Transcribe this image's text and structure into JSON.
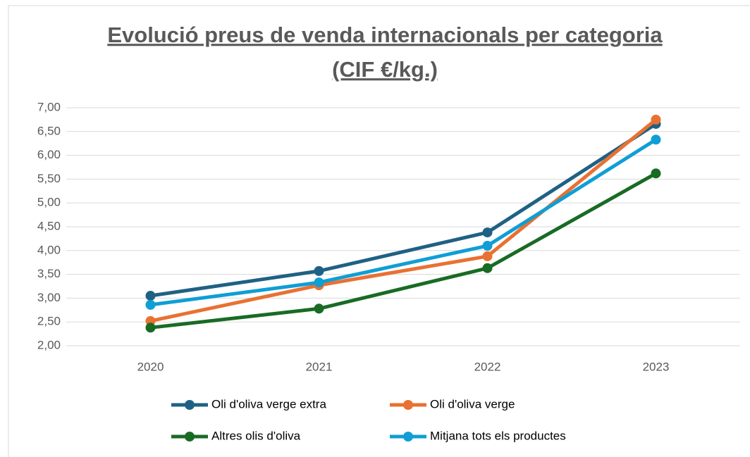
{
  "chart_data": {
    "type": "line",
    "title": [
      "Evolució preus de venda internacionals per categoria",
      "(CIF €/kg.)"
    ],
    "categories": [
      "2020",
      "2021",
      "2022",
      "2023"
    ],
    "series": [
      {
        "name": "Oli d'oliva verge extra",
        "color": "#1f6184",
        "values": [
          3.05,
          3.57,
          4.38,
          6.66
        ]
      },
      {
        "name": "Oli d'oliva verge",
        "color": "#e97132",
        "values": [
          2.52,
          3.27,
          3.88,
          6.75
        ]
      },
      {
        "name": "Altres olis d'oliva",
        "color": "#196b24",
        "values": [
          2.38,
          2.78,
          3.63,
          5.62
        ]
      },
      {
        "name": "Mitjana tots els productes",
        "color": "#0f9ed5",
        "values": [
          2.86,
          3.33,
          4.1,
          6.33
        ]
      }
    ],
    "ylim": [
      2,
      7
    ],
    "yticks": [
      {
        "value": 2,
        "label": "2,00"
      },
      {
        "value": 2.5,
        "label": "2,50"
      },
      {
        "value": 3,
        "label": "3,00"
      },
      {
        "value": 3.5,
        "label": "3,50"
      },
      {
        "value": 4,
        "label": "4,00"
      },
      {
        "value": 4.5,
        "label": "4,50"
      },
      {
        "value": 5,
        "label": "5,00"
      },
      {
        "value": 5.5,
        "label": "5,50"
      },
      {
        "value": 6,
        "label": "6,00"
      },
      {
        "value": 6.5,
        "label": "6,50"
      },
      {
        "value": 7,
        "label": "7,00"
      }
    ],
    "grid": true,
    "legend": "bottom"
  }
}
